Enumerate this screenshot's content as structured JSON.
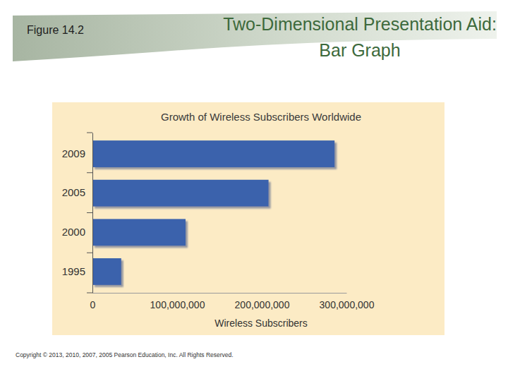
{
  "slide": {
    "figure_label": "Figure 14.2",
    "heading": "Two-Dimensional Presentation Aid: Bar Graph",
    "copyright": "Copyright © 2013, 2010, 2007, 2005 Pearson Education, Inc. All Rights Reserved."
  },
  "chart_data": {
    "type": "bar",
    "orientation": "horizontal",
    "title": "Growth of Wireless Subscribers Worldwide",
    "xlabel": "Wireless Subscribers",
    "categories": [
      "2009",
      "2005",
      "2000",
      "1995"
    ],
    "values": [
      286000000,
      208000000,
      110000000,
      34000000
    ],
    "color": "#3a62ac",
    "xlim": [
      0,
      300000000
    ],
    "xticks": [
      0,
      {
        "value": 100000000,
        "label": "100,000,000"
      },
      {
        "value": 200000000,
        "label": "200,000,000"
      },
      {
        "value": 300000000,
        "label": "300,000,000"
      }
    ],
    "grid": false
  }
}
